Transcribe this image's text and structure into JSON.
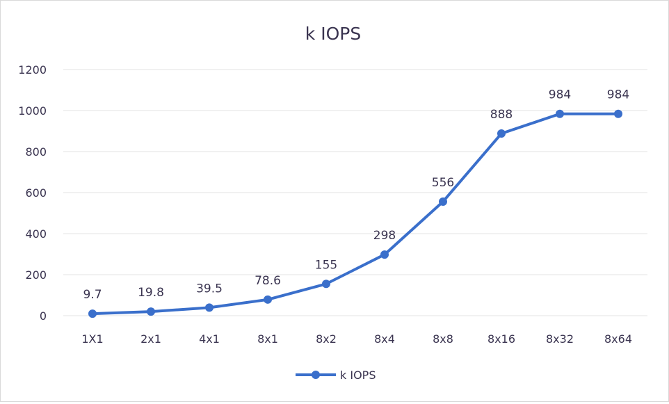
{
  "chart_data": {
    "type": "line",
    "title": "k IOPS",
    "xlabel": "",
    "ylabel": "",
    "categories": [
      "1X1",
      "2x1",
      "4x1",
      "8x1",
      "8x2",
      "8x4",
      "8x8",
      "8x16",
      "8x32",
      "8x64"
    ],
    "series": [
      {
        "name": "k IOPS",
        "values": [
          9.7,
          19.8,
          39.5,
          78.6,
          155,
          298,
          556,
          888,
          984,
          984
        ],
        "labels": [
          "9.7",
          "19.8",
          "39.5",
          "78.6",
          "155",
          "298",
          "556",
          "888",
          "984",
          "984"
        ],
        "color": "#3a6fcb"
      }
    ],
    "ylim": [
      0,
      1200
    ],
    "yticks": [
      0,
      200,
      400,
      600,
      800,
      1000,
      1200
    ],
    "grid": true,
    "legend": "bottom"
  }
}
